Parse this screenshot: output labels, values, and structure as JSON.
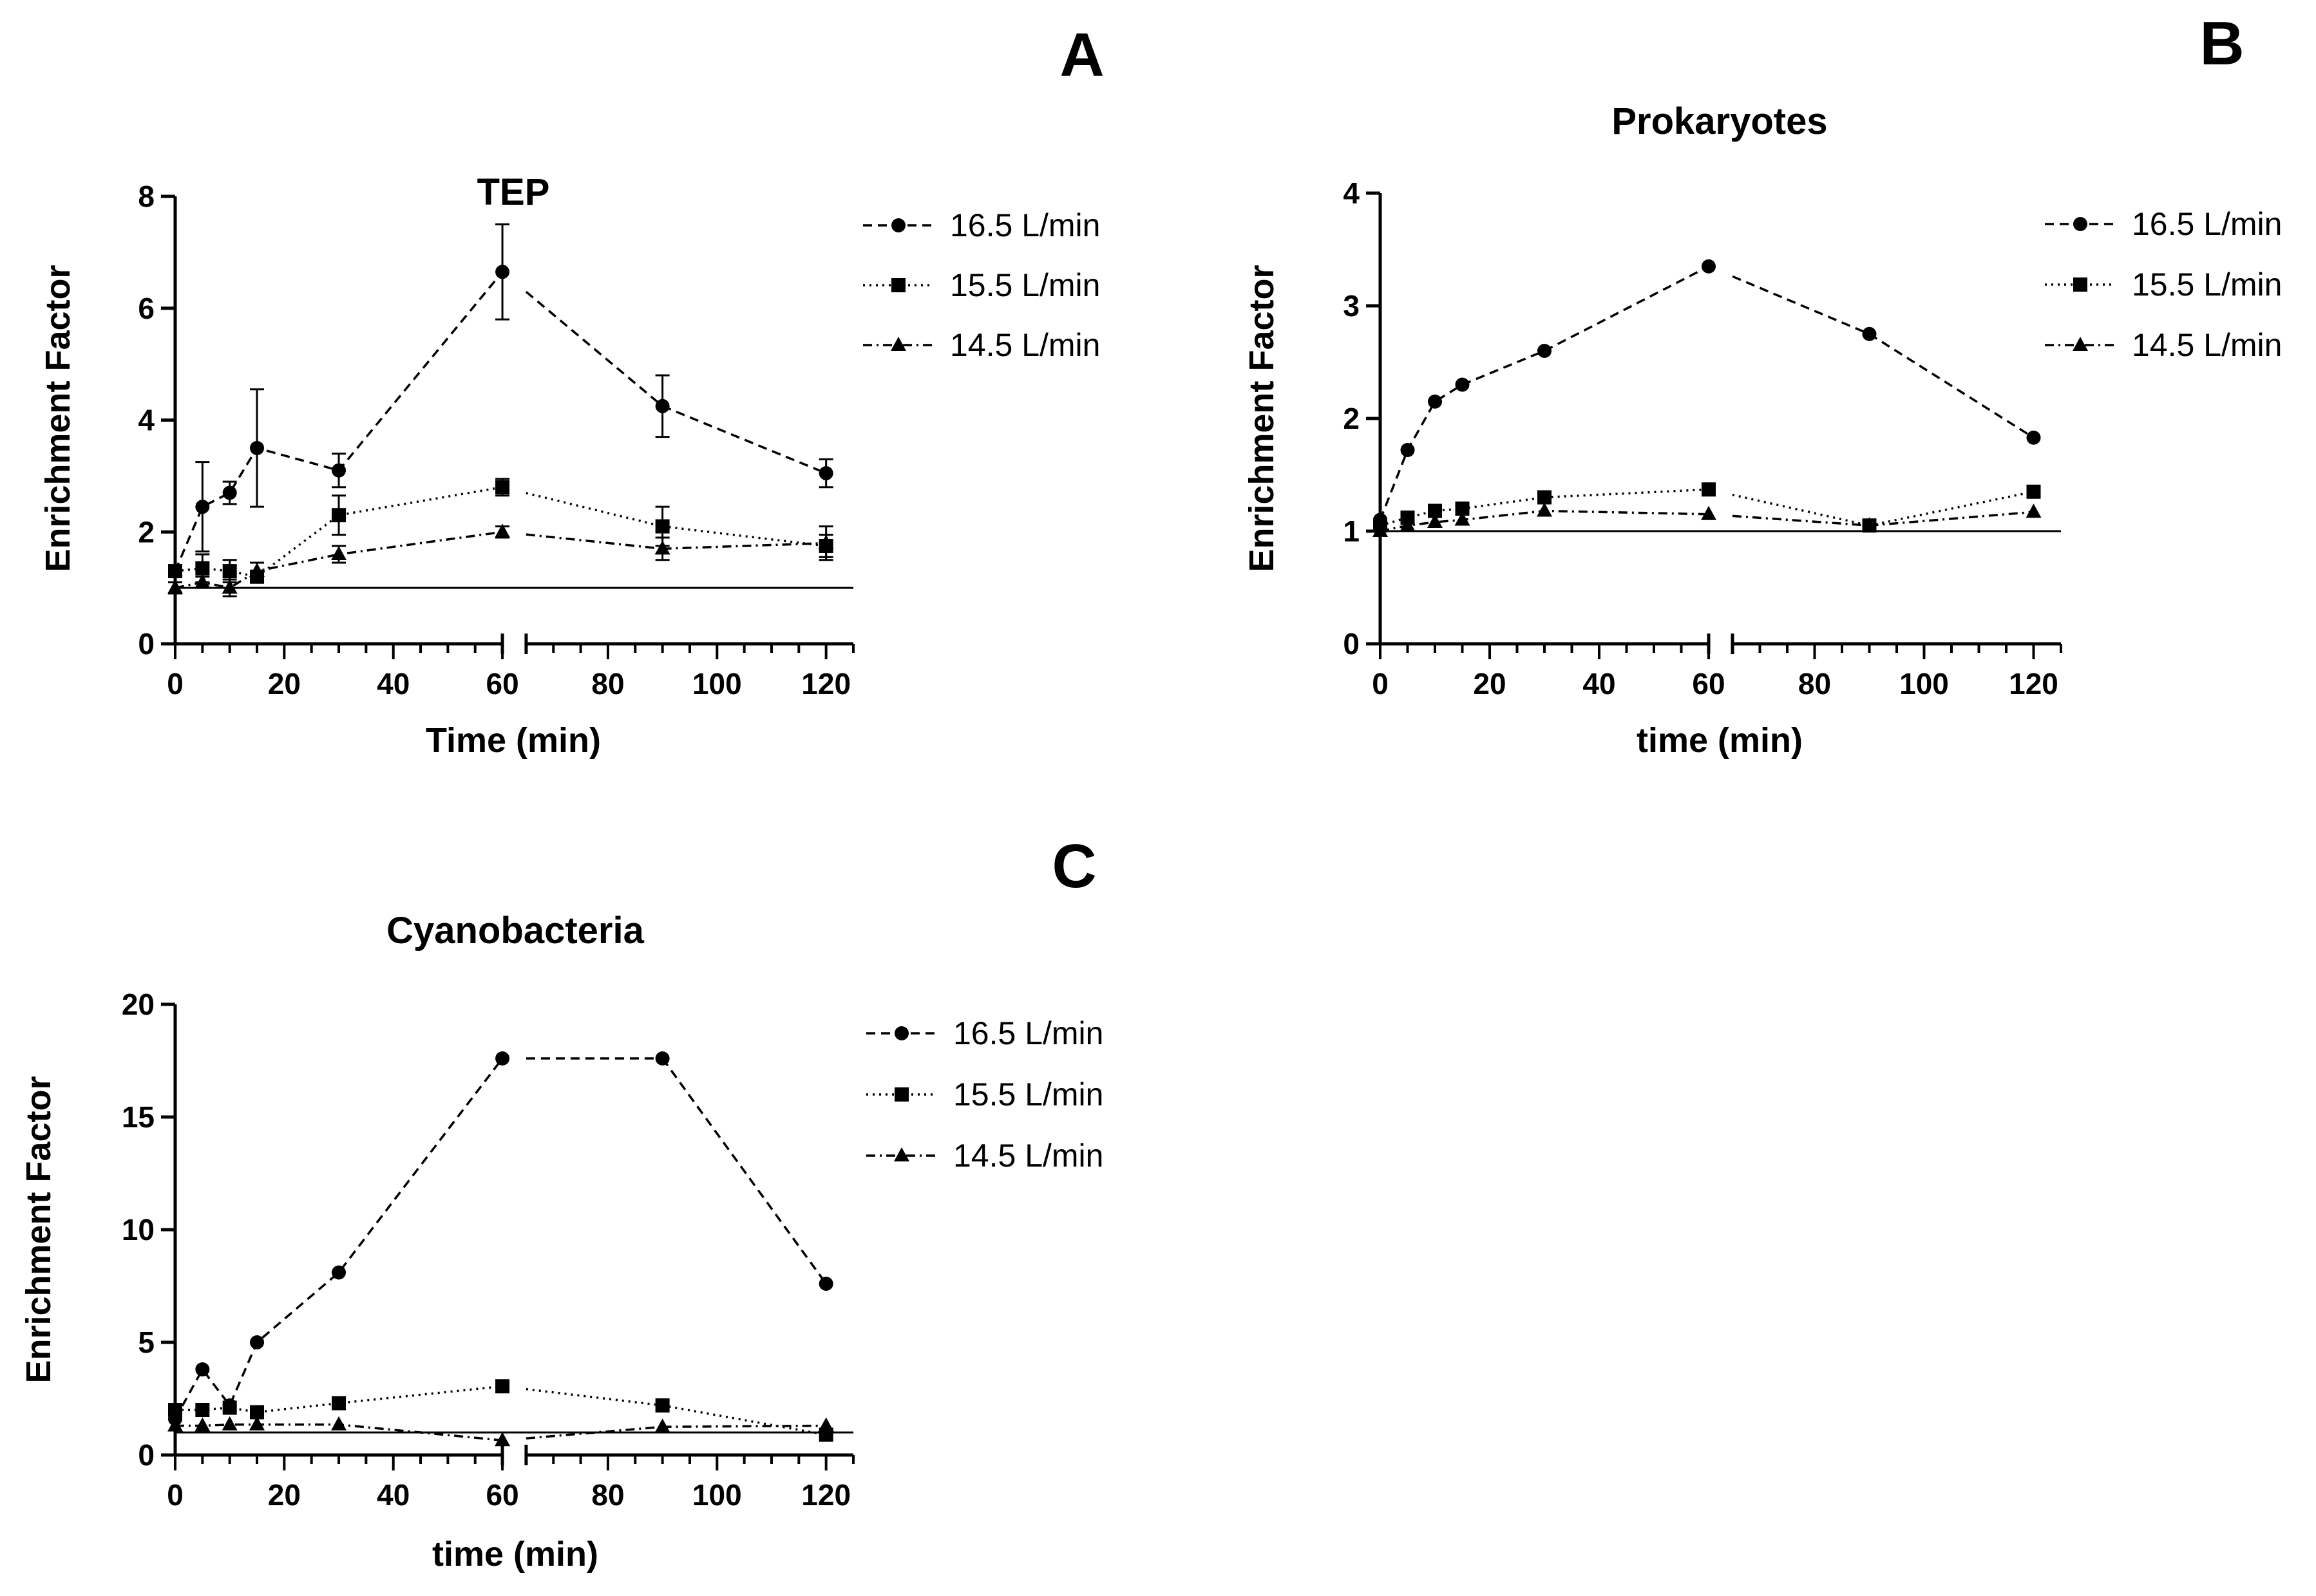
{
  "figure": {
    "panels": [
      "A",
      "B",
      "C"
    ]
  },
  "chart_data": [
    {
      "panel": "A",
      "type": "line",
      "title": "TEP",
      "xlabel": "Time (min)",
      "ylabel": "Enrichment Factor",
      "xlim": [
        0,
        125
      ],
      "ylim": [
        0,
        8
      ],
      "axis_break": [
        60,
        65
      ],
      "xticks": [
        0,
        20,
        40,
        60,
        80,
        100,
        120
      ],
      "yticks": [
        0,
        2,
        4,
        6,
        8
      ],
      "baseline": 1,
      "legend_position": "right",
      "x": [
        0,
        5,
        10,
        15,
        30,
        60,
        90,
        120
      ],
      "series": [
        {
          "name": "16.5 L/min",
          "marker": "circle",
          "dash": "dashed",
          "values": [
            1.3,
            2.45,
            2.7,
            3.5,
            3.1,
            6.65,
            4.25,
            3.05
          ],
          "errors": [
            0.1,
            0.8,
            0.2,
            1.05,
            0.3,
            0.85,
            0.55,
            0.25
          ]
        },
        {
          "name": "15.5 L/min",
          "marker": "square",
          "dash": "dotted",
          "values": [
            1.3,
            1.35,
            1.3,
            1.2,
            2.3,
            2.8,
            2.1,
            1.75
          ],
          "errors": [
            0.1,
            0.25,
            0.2,
            0.1,
            0.35,
            0.15,
            0.35,
            0.2
          ]
        },
        {
          "name": "14.5 L/min",
          "marker": "triangle",
          "dash": "dashdot",
          "values": [
            1.0,
            1.1,
            1.0,
            1.3,
            1.6,
            2.0,
            1.7,
            1.8
          ],
          "errors": [
            0.1,
            0.1,
            0.15,
            0.15,
            0.15,
            0.1,
            0.2,
            0.3
          ]
        }
      ]
    },
    {
      "panel": "B",
      "type": "line",
      "title": "Prokaryotes",
      "xlabel": "time (min)",
      "ylabel": "Enrichment Factor",
      "xlim": [
        0,
        125
      ],
      "ylim": [
        0,
        4
      ],
      "axis_break": [
        60,
        65
      ],
      "xticks": [
        0,
        20,
        40,
        60,
        80,
        100,
        120
      ],
      "yticks": [
        0,
        1,
        2,
        3,
        4
      ],
      "baseline": 1,
      "legend_position": "top-right",
      "x": [
        0,
        5,
        10,
        15,
        30,
        60,
        90,
        120
      ],
      "series": [
        {
          "name": "16.5 L/min",
          "marker": "circle",
          "dash": "dashed",
          "values": [
            1.1,
            1.72,
            2.15,
            2.3,
            2.6,
            3.35,
            2.75,
            1.83
          ]
        },
        {
          "name": "15.5 L/min",
          "marker": "square",
          "dash": "dotted",
          "values": [
            1.05,
            1.12,
            1.18,
            1.2,
            1.3,
            1.37,
            1.05,
            1.35
          ]
        },
        {
          "name": "14.5 L/min",
          "marker": "triangle",
          "dash": "dashdot",
          "values": [
            1.0,
            1.05,
            1.08,
            1.1,
            1.18,
            1.15,
            1.05,
            1.17
          ]
        }
      ]
    },
    {
      "panel": "C",
      "type": "line",
      "title": "Cyanobacteria",
      "xlabel": "time (min)",
      "ylabel": "Enrichment Factor",
      "xlim": [
        0,
        125
      ],
      "ylim": [
        0,
        20
      ],
      "axis_break": [
        60,
        65
      ],
      "xticks": [
        0,
        20,
        40,
        60,
        80,
        100,
        120
      ],
      "yticks": [
        0,
        5,
        10,
        15,
        20
      ],
      "baseline": 1,
      "legend_position": "right",
      "x": [
        0,
        5,
        10,
        15,
        30,
        60,
        90,
        120
      ],
      "series": [
        {
          "name": "16.5 L/min",
          "marker": "circle",
          "dash": "dashed",
          "values": [
            1.6,
            3.8,
            2.2,
            5.0,
            8.1,
            17.6,
            17.6,
            7.6
          ]
        },
        {
          "name": "15.5 L/min",
          "marker": "square",
          "dash": "dotted",
          "values": [
            2.0,
            2.0,
            2.1,
            1.9,
            2.3,
            3.05,
            2.2,
            0.9
          ]
        },
        {
          "name": "14.5 L/min",
          "marker": "triangle",
          "dash": "dashdot",
          "values": [
            1.3,
            1.3,
            1.35,
            1.35,
            1.35,
            0.65,
            1.25,
            1.3
          ]
        }
      ]
    }
  ]
}
